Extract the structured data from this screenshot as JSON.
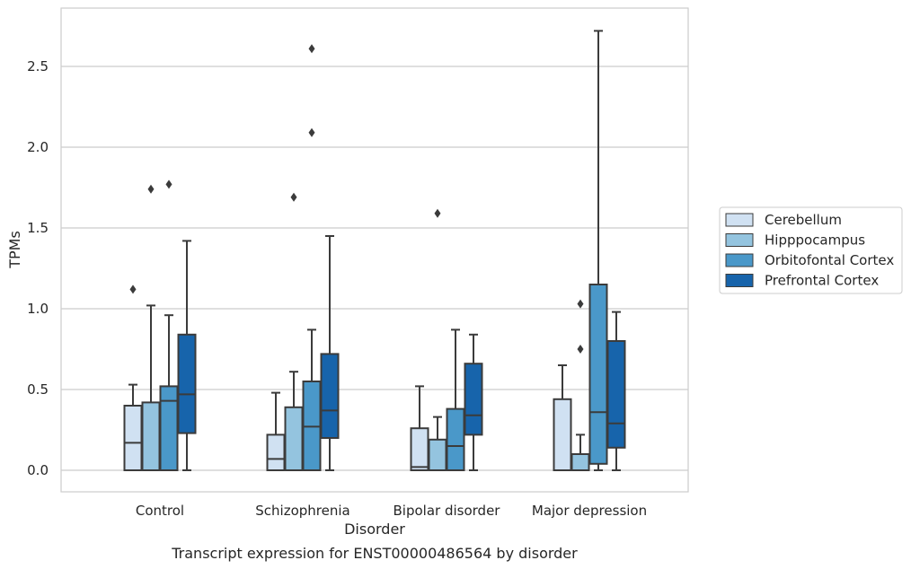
{
  "chart_data": {
    "type": "box",
    "title": "",
    "xlabel": "Disorder",
    "ylabel": "TPMs",
    "caption": "Transcript expression for ENST00000486564 by disorder",
    "categories": [
      "Control",
      "Schizophrenia",
      "Bipolar disorder",
      "Major depression"
    ],
    "ylim": [
      -0.13,
      2.88
    ],
    "yticks": [
      0.0,
      0.5,
      1.0,
      1.5,
      2.0,
      2.5
    ],
    "ytick_labels": [
      "0.0",
      "0.5",
      "1.0",
      "1.5",
      "2.0",
      "2.5"
    ],
    "grid": "horizontal",
    "legend_position": "right",
    "series": [
      {
        "name": "Cerebellum",
        "color": "#d0e1f2",
        "boxes": [
          {
            "whislo": 0.0,
            "q1": 0.0,
            "med": 0.17,
            "q3": 0.4,
            "whishi": 0.53,
            "fliers": [
              1.12
            ]
          },
          {
            "whislo": 0.0,
            "q1": 0.0,
            "med": 0.07,
            "q3": 0.22,
            "whishi": 0.48,
            "fliers": []
          },
          {
            "whislo": 0.0,
            "q1": 0.0,
            "med": 0.02,
            "q3": 0.26,
            "whishi": 0.52,
            "fliers": []
          },
          {
            "whislo": 0.0,
            "q1": 0.0,
            "med": 0.0,
            "q3": 0.44,
            "whishi": 0.65,
            "fliers": []
          }
        ]
      },
      {
        "name": "Hipppocampus",
        "color": "#94c4df",
        "boxes": [
          {
            "whislo": 0.0,
            "q1": 0.0,
            "med": 0.0,
            "q3": 0.42,
            "whishi": 1.02,
            "fliers": [
              1.74
            ]
          },
          {
            "whislo": 0.0,
            "q1": 0.0,
            "med": 0.0,
            "q3": 0.39,
            "whishi": 0.61,
            "fliers": [
              1.69
            ]
          },
          {
            "whislo": 0.0,
            "q1": 0.0,
            "med": 0.0,
            "q3": 0.19,
            "whishi": 0.33,
            "fliers": [
              1.59
            ]
          },
          {
            "whislo": 0.0,
            "q1": 0.0,
            "med": 0.0,
            "q3": 0.1,
            "whishi": 0.22,
            "fliers": [
              0.75,
              1.03
            ]
          }
        ]
      },
      {
        "name": "Orbitofontal Cortex",
        "color": "#4a98c9",
        "boxes": [
          {
            "whislo": 0.0,
            "q1": 0.0,
            "med": 0.43,
            "q3": 0.52,
            "whishi": 0.96,
            "fliers": [
              1.77
            ]
          },
          {
            "whislo": 0.0,
            "q1": 0.0,
            "med": 0.27,
            "q3": 0.55,
            "whishi": 0.87,
            "fliers": [
              2.09,
              2.61
            ]
          },
          {
            "whislo": 0.0,
            "q1": 0.0,
            "med": 0.15,
            "q3": 0.38,
            "whishi": 0.87,
            "fliers": []
          },
          {
            "whislo": 0.0,
            "q1": 0.04,
            "med": 0.36,
            "q3": 1.15,
            "whishi": 2.72,
            "fliers": []
          }
        ]
      },
      {
        "name": "Prefrontal Cortex",
        "color": "#1764ab",
        "boxes": [
          {
            "whislo": 0.0,
            "q1": 0.23,
            "med": 0.47,
            "q3": 0.84,
            "whishi": 1.42,
            "fliers": []
          },
          {
            "whislo": 0.0,
            "q1": 0.2,
            "med": 0.37,
            "q3": 0.72,
            "whishi": 1.45,
            "fliers": []
          },
          {
            "whislo": 0.0,
            "q1": 0.22,
            "med": 0.34,
            "q3": 0.66,
            "whishi": 0.84,
            "fliers": []
          },
          {
            "whislo": 0.0,
            "q1": 0.14,
            "med": 0.29,
            "q3": 0.8,
            "whishi": 0.98,
            "fliers": []
          }
        ]
      }
    ]
  }
}
